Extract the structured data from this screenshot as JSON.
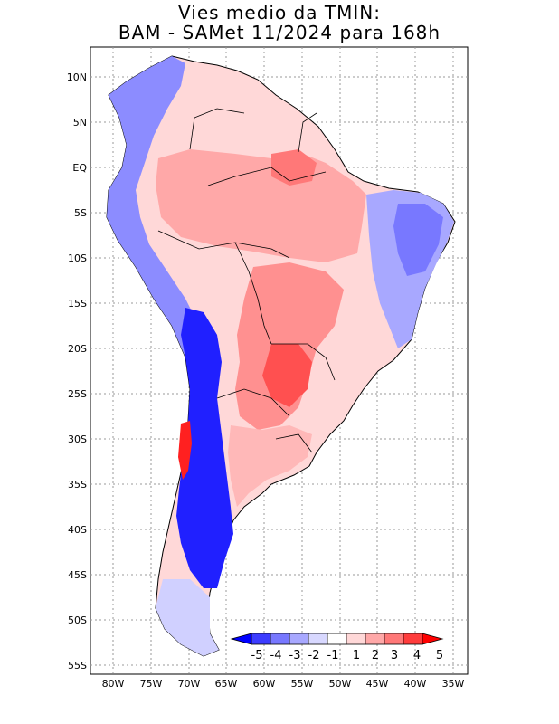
{
  "title": {
    "line1": "Vies medio da TMIN:",
    "line2": "BAM - SAMet 11/2024  para 168h"
  },
  "axes": {
    "lat_labels": [
      "10N",
      "5N",
      "EQ",
      "5S",
      "10S",
      "15S",
      "20S",
      "25S",
      "30S",
      "35S",
      "40S",
      "45S",
      "50S",
      "55S"
    ],
    "lon_labels": [
      "80W",
      "75W",
      "70W",
      "65W",
      "60W",
      "55W",
      "50W",
      "45W",
      "40W",
      "35W"
    ]
  },
  "colorbar": {
    "labels": [
      "-5",
      "-4",
      "-3",
      "-2",
      "-1",
      "1",
      "2",
      "3",
      "4",
      "5"
    ],
    "colors": [
      "#0000ff",
      "#3c3cff",
      "#7878ff",
      "#a8a8ff",
      "#d8d8ff",
      "#ffffff",
      "#ffd8d8",
      "#ffa8a8",
      "#ff7878",
      "#ff3c3c",
      "#ff0000"
    ]
  },
  "regions": [
    {
      "name": "andes-north-blue",
      "color": "#7878ff"
    },
    {
      "name": "amazon-red",
      "color": "#ffa8a8"
    },
    {
      "name": "northeast-blue",
      "color": "#a8a8ff"
    },
    {
      "name": "central-red",
      "color": "#ff7878"
    },
    {
      "name": "chile-blue",
      "color": "#0000ff"
    }
  ]
}
